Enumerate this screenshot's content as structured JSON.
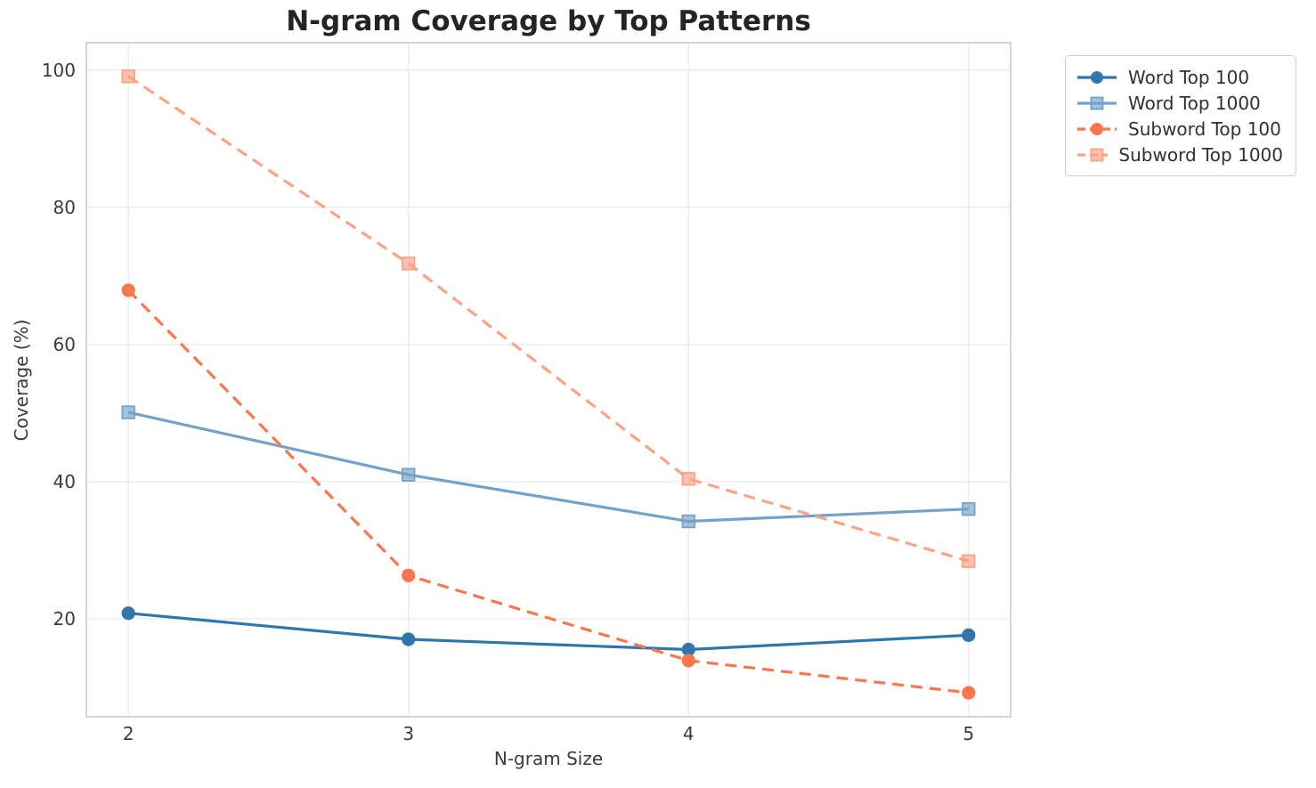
{
  "chart_data": {
    "type": "line",
    "title": "N-gram Coverage by Top Patterns",
    "xlabel": "N-gram Size",
    "ylabel": "Coverage (%)",
    "x": [
      2,
      3,
      4,
      5
    ],
    "x_tick_labels": [
      "2",
      "3",
      "4",
      "5"
    ],
    "y_ticks": [
      20,
      40,
      60,
      80,
      100
    ],
    "y_tick_labels": [
      "20",
      "40",
      "60",
      "80",
      "100"
    ],
    "xlim": [
      1.85,
      5.15
    ],
    "ylim": [
      5.7,
      104
    ],
    "grid": true,
    "legend_position": "outside-right-top",
    "series": [
      {
        "name": "Word Top 100",
        "values": [
          20.8,
          17.0,
          15.5,
          17.6
        ],
        "color": "#2f76ad",
        "marker": "circle",
        "line_style": "solid"
      },
      {
        "name": "Word Top 1000",
        "values": [
          50.1,
          41.0,
          34.2,
          36.0
        ],
        "color": "#74a1c9",
        "marker": "square",
        "line_style": "solid"
      },
      {
        "name": "Subword Top 100",
        "values": [
          67.9,
          26.3,
          13.9,
          9.2
        ],
        "color": "#f9764e",
        "marker": "circle",
        "line_style": "dashed"
      },
      {
        "name": "Subword Top 1000",
        "values": [
          99.1,
          71.8,
          40.4,
          28.4
        ],
        "color": "#fca285",
        "marker": "square",
        "line_style": "dashed"
      }
    ],
    "colors": {
      "background": "#ffffff",
      "grid": "#eaeaea",
      "spine": "#c9c9c9",
      "tick_text": "#3b3b3b",
      "title_text": "#242424"
    }
  }
}
